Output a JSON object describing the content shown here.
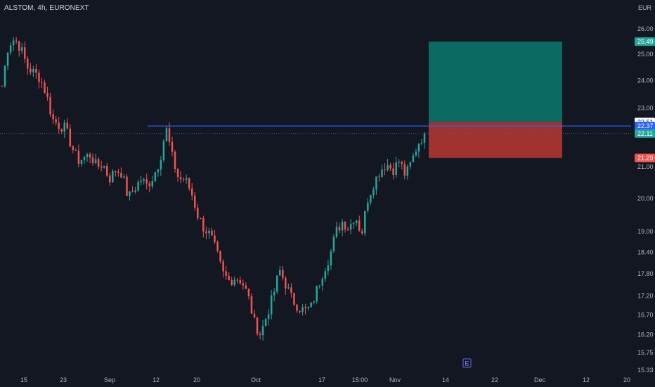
{
  "legend": {
    "symbol": "ALSTOM",
    "interval": "4h",
    "exchange": "EURONEXT",
    "text": "ALSTOM, 4h, EURONEXT"
  },
  "currency": "EUR",
  "earnings_marker": "E",
  "colors": {
    "background": "#131722",
    "up": "#26a69a",
    "down": "#ef5350",
    "level_line": "#2962ff",
    "target_zone": "#0b6b64",
    "stop_zone": "#a0322f",
    "axis_text": "#b2b5be"
  },
  "chart_data": {
    "type": "candlestick",
    "y_scale": "log",
    "ylim": [
      15.33,
      27.0
    ],
    "y_ticks": [
      "26.00",
      "25.00",
      "24.00",
      "23.00",
      "21.00",
      "20.00",
      "19.00",
      "18.40",
      "17.80",
      "17.20",
      "16.70",
      "16.20",
      "15.75",
      "15.33"
    ],
    "x_ticks": [
      "15",
      "23",
      "Sep",
      "12",
      "20",
      "Oct",
      "17",
      "15:00",
      "Nov",
      "14",
      "22",
      "Dec",
      "12",
      "20"
    ],
    "horizontal_level": 22.37,
    "position": {
      "target": 25.49,
      "entry": 22.51,
      "stop": 21.29
    },
    "price_badges": [
      {
        "label": "25.49",
        "value": 25.49,
        "role": "target"
      },
      {
        "label": "22.51",
        "value": 22.51,
        "role": "entry"
      },
      {
        "label": "22.37",
        "value": 22.37,
        "role": "level"
      },
      {
        "label": "22.11",
        "value": 22.11,
        "role": "last"
      },
      {
        "label": "21.29",
        "value": 21.29,
        "role": "stop"
      }
    ],
    "anchor_prices": [
      23.8,
      25.4,
      25.6,
      25.2,
      24.5,
      24.3,
      24.1,
      23.5,
      22.6,
      22.4,
      22.3,
      21.7,
      21.2,
      21.3,
      21.4,
      21.0,
      21.1,
      20.6,
      20.9,
      20.8,
      20.0,
      20.3,
      20.6,
      20.4,
      20.7,
      21.2,
      22.3,
      21.3,
      20.6,
      20.6,
      20.2,
      19.5,
      19.1,
      18.9,
      18.4,
      17.8,
      17.6,
      17.7,
      17.6,
      17.2,
      16.5,
      16.2,
      16.7,
      17.2,
      17.9,
      17.5,
      17.1,
      16.9,
      16.8,
      16.9,
      17.4,
      17.9,
      18.3,
      19.0,
      19.3,
      19.1,
      19.5,
      18.9,
      20.0,
      20.5,
      20.9,
      21.1,
      20.9,
      21.2,
      20.7,
      21.2,
      21.8,
      22.1
    ],
    "last": 22.11
  }
}
